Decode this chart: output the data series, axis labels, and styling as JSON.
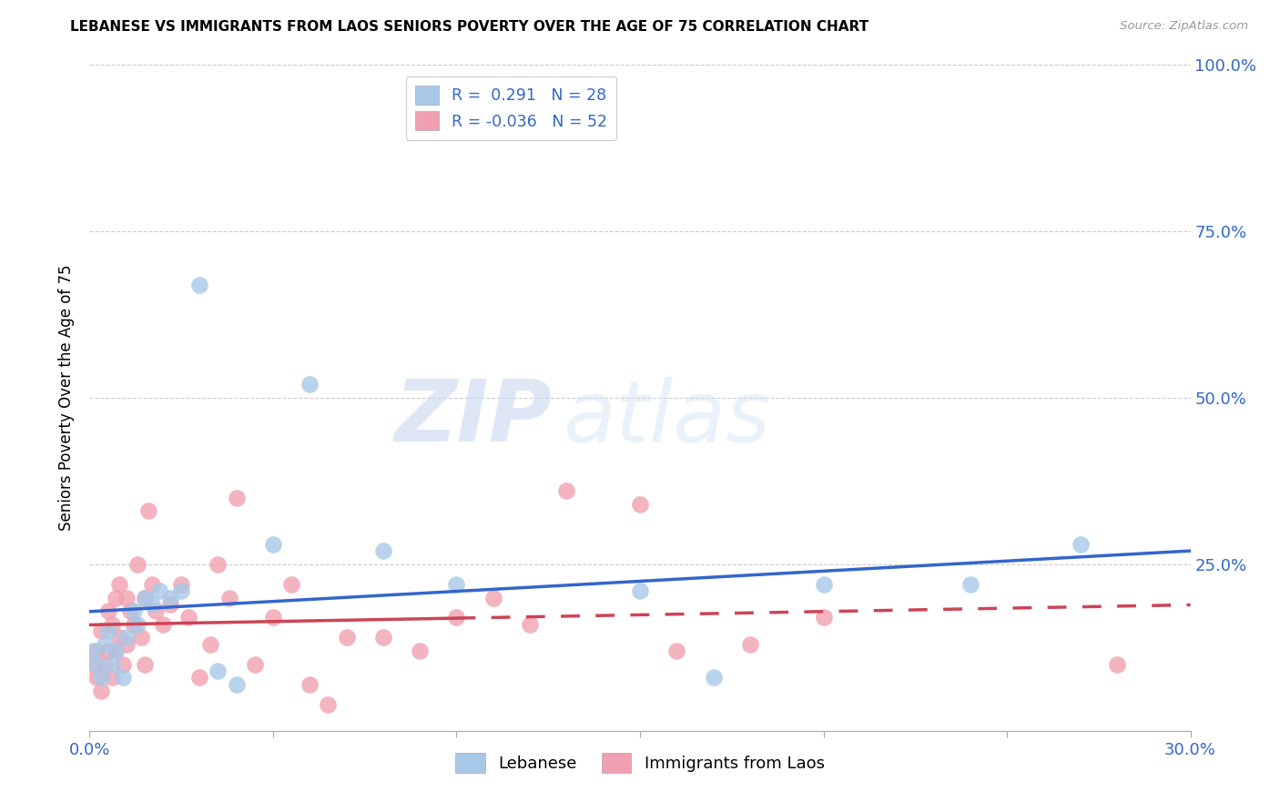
{
  "title": "LEBANESE VS IMMIGRANTS FROM LAOS SENIORS POVERTY OVER THE AGE OF 75 CORRELATION CHART",
  "source": "Source: ZipAtlas.com",
  "ylabel_label": "Seniors Poverty Over the Age of 75",
  "xlim": [
    0.0,
    0.3
  ],
  "ylim": [
    0.0,
    1.0
  ],
  "xticks": [
    0.0,
    0.05,
    0.1,
    0.15,
    0.2,
    0.25,
    0.3
  ],
  "xtick_labels": [
    "0.0%",
    "",
    "",
    "",
    "",
    "",
    "30.0%"
  ],
  "yticks": [
    0.0,
    0.25,
    0.5,
    0.75,
    1.0
  ],
  "ytick_labels": [
    "",
    "25.0%",
    "50.0%",
    "75.0%",
    "100.0%"
  ],
  "r_lebanese": 0.291,
  "n_lebanese": 28,
  "r_laos": -0.036,
  "n_laos": 52,
  "color_lebanese": "#a8c8e8",
  "color_laos": "#f0a0b0",
  "line_color_lebanese": "#3366cc",
  "line_color_laos": "#cc4455",
  "watermark_zip": "ZIP",
  "watermark_atlas": "atlas",
  "lebanese_x": [
    0.001,
    0.002,
    0.003,
    0.004,
    0.005,
    0.006,
    0.007,
    0.009,
    0.01,
    0.012,
    0.013,
    0.015,
    0.017,
    0.019,
    0.022,
    0.025,
    0.03,
    0.035,
    0.04,
    0.05,
    0.06,
    0.08,
    0.1,
    0.15,
    0.17,
    0.2,
    0.24,
    0.27
  ],
  "lebanese_y": [
    0.12,
    0.1,
    0.08,
    0.13,
    0.15,
    0.1,
    0.12,
    0.08,
    0.14,
    0.18,
    0.16,
    0.2,
    0.19,
    0.21,
    0.2,
    0.21,
    0.67,
    0.09,
    0.07,
    0.28,
    0.52,
    0.27,
    0.22,
    0.21,
    0.08,
    0.22,
    0.22,
    0.28
  ],
  "laos_x": [
    0.001,
    0.002,
    0.002,
    0.003,
    0.003,
    0.004,
    0.005,
    0.005,
    0.006,
    0.006,
    0.007,
    0.007,
    0.008,
    0.008,
    0.009,
    0.01,
    0.01,
    0.011,
    0.012,
    0.013,
    0.014,
    0.015,
    0.015,
    0.016,
    0.017,
    0.018,
    0.02,
    0.022,
    0.025,
    0.027,
    0.03,
    0.033,
    0.035,
    0.038,
    0.04,
    0.045,
    0.05,
    0.055,
    0.06,
    0.065,
    0.07,
    0.08,
    0.09,
    0.1,
    0.11,
    0.12,
    0.13,
    0.15,
    0.16,
    0.18,
    0.2,
    0.28
  ],
  "laos_y": [
    0.1,
    0.08,
    0.12,
    0.06,
    0.15,
    0.1,
    0.12,
    0.18,
    0.08,
    0.16,
    0.12,
    0.2,
    0.14,
    0.22,
    0.1,
    0.13,
    0.2,
    0.18,
    0.16,
    0.25,
    0.14,
    0.1,
    0.2,
    0.33,
    0.22,
    0.18,
    0.16,
    0.19,
    0.22,
    0.17,
    0.08,
    0.13,
    0.25,
    0.2,
    0.35,
    0.1,
    0.17,
    0.22,
    0.07,
    0.04,
    0.14,
    0.14,
    0.12,
    0.17,
    0.2,
    0.16,
    0.36,
    0.34,
    0.12,
    0.13,
    0.17,
    0.1
  ]
}
